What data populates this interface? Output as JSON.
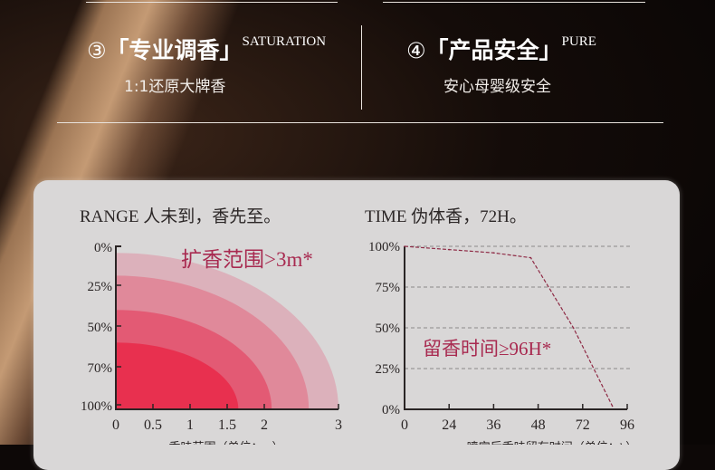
{
  "features": [
    {
      "number": "③",
      "title": "「专业调香」",
      "tag": "SATURATION",
      "subtitle": "1:1还原大牌香"
    },
    {
      "number": "④",
      "title": "「产品安全」",
      "tag": "PURE",
      "subtitle": "安心母婴级安全"
    }
  ],
  "colors": {
    "accent": "#a82a50",
    "panel": "#d9d7d7",
    "ring_core": "#e8304f"
  },
  "chart_data": [
    {
      "type": "area",
      "title": "RANGE  人未到，香先至。",
      "annotation": "扩香范围>3m*",
      "xlabel": "香味范围（单位：m）",
      "ylabel": "",
      "x_ticks": [
        "0",
        "0.5",
        "1",
        "1.5",
        "2",
        "3"
      ],
      "y_ticks": [
        "0%",
        "25%",
        "50%",
        "70%",
        "100%"
      ],
      "xlim": [
        0,
        3
      ],
      "rings": [
        {
          "radius_m": 3.0,
          "top_pct": 4,
          "color": "#dcb1bb"
        },
        {
          "radius_m": 2.6,
          "top_pct": 18,
          "color": "#e0899a"
        },
        {
          "radius_m": 2.1,
          "top_pct": 39,
          "color": "#e35a74"
        },
        {
          "radius_m": 1.65,
          "top_pct": 59,
          "color": "#e8304f"
        }
      ]
    },
    {
      "type": "line",
      "title": "TIME  伪体香，72H。",
      "annotation": "留香时间≥96H*",
      "xlabel": "喷完后香味留存时间（单位：h）",
      "ylabel": "",
      "x_ticks": [
        "0",
        "24",
        "36",
        "48",
        "72",
        "96"
      ],
      "y_ticks": [
        "0%",
        "25%",
        "50%",
        "75%",
        "100%"
      ],
      "grid": true,
      "series": [
        {
          "x": [
            0,
            24,
            36,
            46,
            67,
            88
          ],
          "y": [
            100,
            98,
            96,
            93,
            50,
            2
          ]
        }
      ]
    }
  ]
}
